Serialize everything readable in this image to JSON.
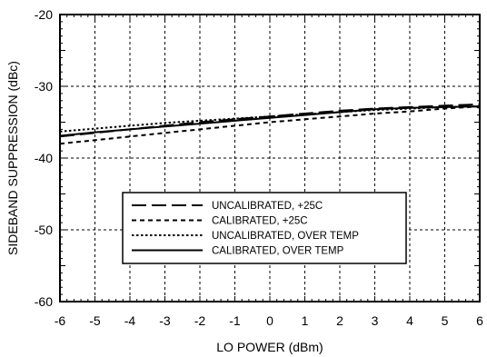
{
  "chart_data": {
    "type": "line",
    "xlabel": "LO POWER (dBm)",
    "ylabel": "SIDEBAND SUPPRESSION (dBc)",
    "xlim": [
      -6,
      6
    ],
    "ylim": [
      -60,
      -20
    ],
    "xticks": [
      -6,
      -5,
      -4,
      -3,
      -2,
      -1,
      0,
      1,
      2,
      3,
      4,
      5,
      6
    ],
    "yticks": [
      -20,
      -30,
      -40,
      -50,
      -60
    ],
    "grid": true,
    "legend_position": "lower-center",
    "series": [
      {
        "name": "UNCALIBRATED, +25C",
        "style": "long-dash",
        "x": [
          -6,
          -5,
          -4,
          -3,
          -2,
          -1,
          0,
          1,
          2,
          3,
          4,
          5,
          6
        ],
        "y": [
          -37.0,
          -36.5,
          -36.0,
          -35.5,
          -35.0,
          -34.6,
          -34.2,
          -33.8,
          -33.4,
          -33.1,
          -32.9,
          -32.7,
          -32.5
        ]
      },
      {
        "name": "CALIBRATED, +25C",
        "style": "dash",
        "x": [
          -6,
          -5,
          -4,
          -3,
          -2,
          -1,
          0,
          1,
          2,
          3,
          4,
          5,
          6
        ],
        "y": [
          -38.0,
          -37.5,
          -37.0,
          -36.5,
          -36.0,
          -35.5,
          -35.0,
          -34.6,
          -34.2,
          -33.8,
          -33.5,
          -33.1,
          -32.8
        ]
      },
      {
        "name": "UNCALIBRATED, OVER TEMP",
        "style": "dot",
        "x": [
          -6,
          -5,
          -4,
          -3,
          -2,
          -1,
          0,
          1,
          2,
          3,
          4,
          5,
          6
        ],
        "y": [
          -36.3,
          -35.9,
          -35.5,
          -35.1,
          -34.8,
          -34.5,
          -34.2,
          -33.9,
          -33.6,
          -33.3,
          -33.1,
          -32.9,
          -32.8
        ]
      },
      {
        "name": "CALIBRATED,  OVER TEMP",
        "style": "solid",
        "x": [
          -6,
          -5,
          -4,
          -3,
          -2,
          -1,
          0,
          1,
          2,
          3,
          4,
          5,
          6
        ],
        "y": [
          -36.9,
          -36.4,
          -36.0,
          -35.6,
          -35.2,
          -34.8,
          -34.4,
          -34.0,
          -33.6,
          -33.2,
          -33.0,
          -32.9,
          -32.8
        ]
      }
    ]
  }
}
